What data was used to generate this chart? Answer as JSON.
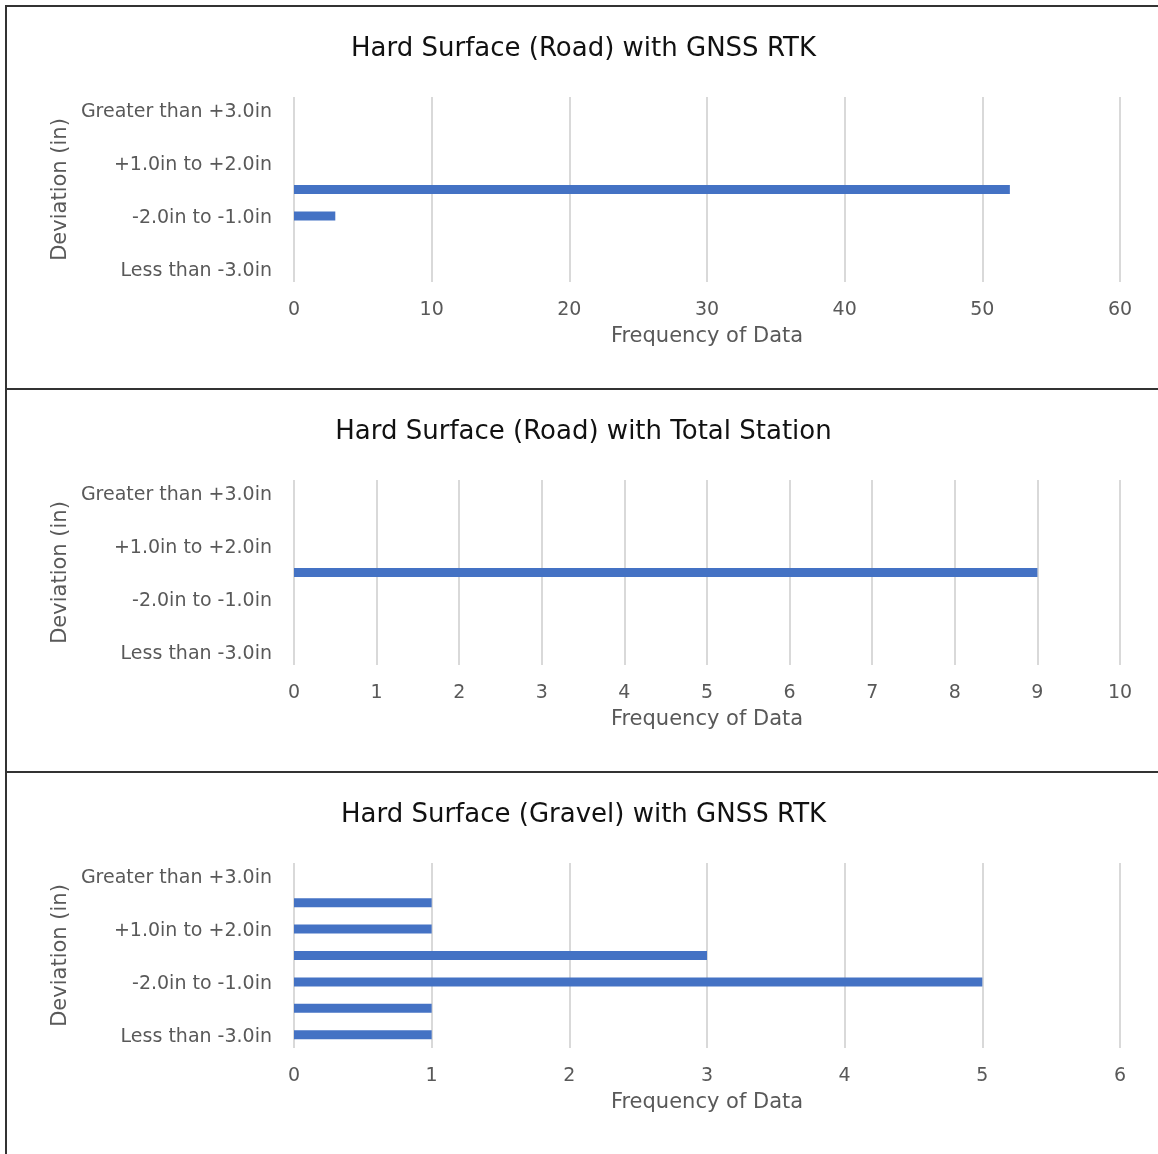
{
  "chart_data": [
    {
      "type": "bar",
      "orientation": "horizontal",
      "title": "Hard Surface (Road) with GNSS RTK",
      "xlabel": "Frequency of Data",
      "ylabel": "Deviation (in)",
      "categories": [
        "Greater than +3.0in",
        null,
        "+1.0in to +2.0in",
        null,
        "-2.0in to -1.0in",
        null,
        "Less than -3.0in"
      ],
      "values": [
        0,
        0,
        0,
        52,
        3,
        0,
        0
      ],
      "color": "#4472c4",
      "xlim": [
        0,
        60
      ],
      "xticks": [
        0,
        10,
        20,
        30,
        40,
        50,
        60
      ],
      "grid": "x"
    },
    {
      "type": "bar",
      "orientation": "horizontal",
      "title": "Hard Surface (Road) with Total Station",
      "xlabel": "Frequency of Data",
      "ylabel": "Deviation (in)",
      "categories": [
        "Greater than +3.0in",
        null,
        "+1.0in to +2.0in",
        null,
        "-2.0in to -1.0in",
        null,
        "Less than -3.0in"
      ],
      "values": [
        0,
        0,
        0,
        9,
        0,
        0,
        0
      ],
      "color": "#4472c4",
      "xlim": [
        0,
        10
      ],
      "xticks": [
        0,
        1,
        2,
        3,
        4,
        5,
        6,
        7,
        8,
        9,
        10
      ],
      "grid": "x"
    },
    {
      "type": "bar",
      "orientation": "horizontal",
      "title": "Hard Surface (Gravel) with GNSS RTK",
      "xlabel": "Frequency of Data",
      "ylabel": "Deviation (in)",
      "categories": [
        "Greater than +3.0in",
        null,
        "+1.0in to +2.0in",
        null,
        "-2.0in to -1.0in",
        null,
        "Less than -3.0in"
      ],
      "values": [
        0,
        1,
        1,
        3,
        5,
        1,
        1
      ],
      "color": "#4472c4",
      "xlim": [
        0,
        6
      ],
      "xticks": [
        0,
        1,
        2,
        3,
        4,
        5,
        6
      ],
      "grid": "x"
    }
  ]
}
